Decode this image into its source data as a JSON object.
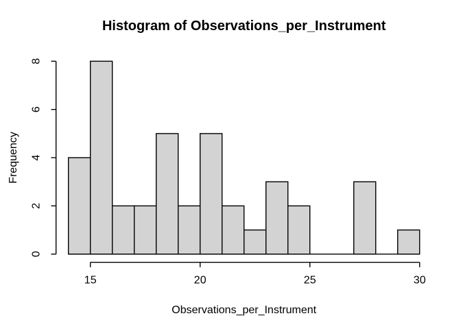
{
  "title": "Histogram of Observations_per_Instrument",
  "chart_data": {
    "type": "bar",
    "subtype": "histogram",
    "title": "Histogram of Observations_per_Instrument",
    "xlabel": "Observations_per_Instrument",
    "ylabel": "Frequency",
    "bin_edges": [
      14,
      15,
      16,
      17,
      18,
      19,
      20,
      21,
      22,
      23,
      24,
      25,
      26,
      27,
      28,
      29,
      30
    ],
    "counts": [
      4,
      8,
      2,
      2,
      5,
      2,
      5,
      2,
      1,
      3,
      2,
      0,
      0,
      3,
      0,
      1
    ],
    "x_ticks": [
      15,
      20,
      25,
      30
    ],
    "y_ticks": [
      0,
      2,
      4,
      6,
      8
    ],
    "xlim": [
      14,
      30
    ],
    "ylim": [
      0,
      8
    ],
    "grid": false,
    "legend": false,
    "colors": {
      "bar_fill": "#d3d3d3",
      "bar_stroke": "#000000",
      "axis": "#000000",
      "text": "#000000",
      "background": "#ffffff"
    }
  }
}
